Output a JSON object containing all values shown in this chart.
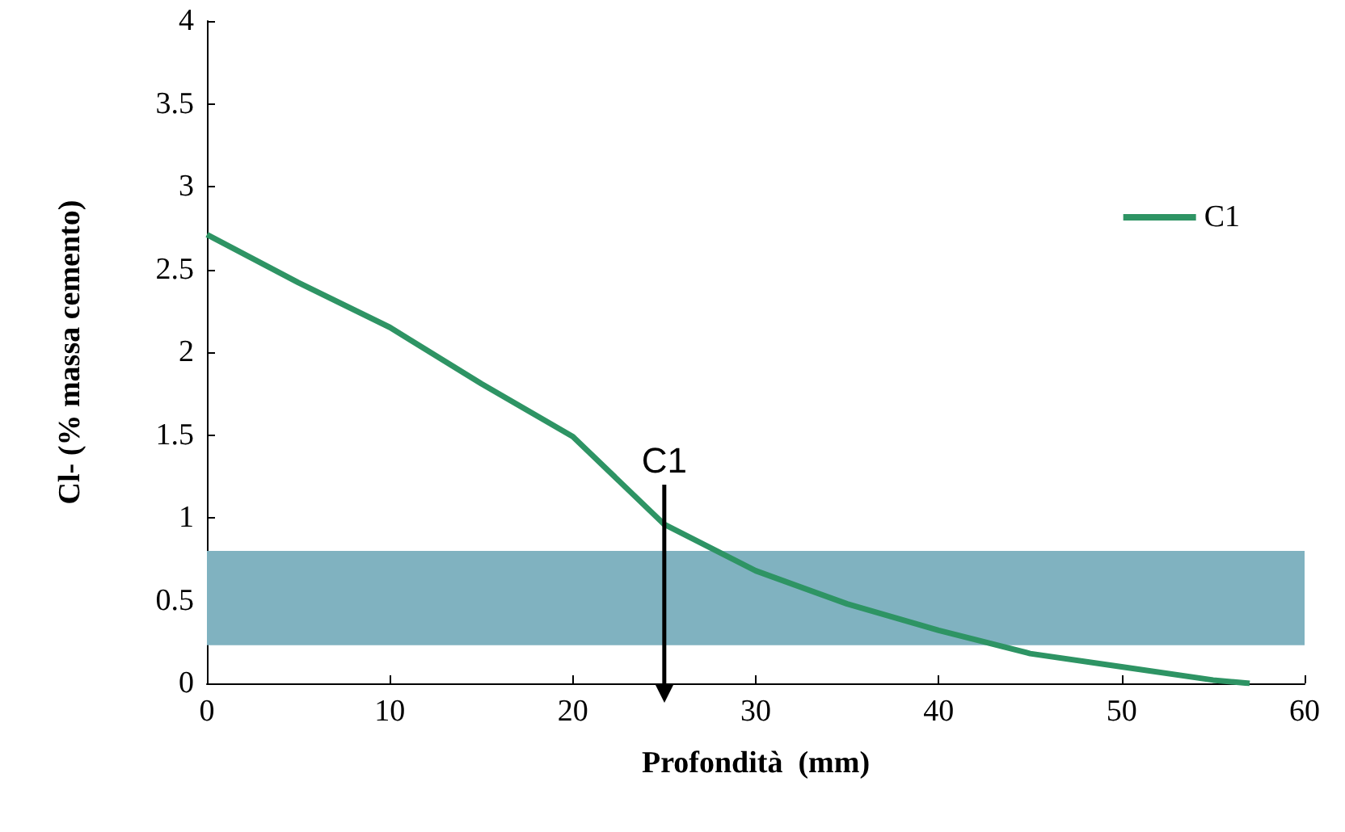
{
  "chart_data": {
    "type": "line",
    "xlabel": "Profondità  (mm)",
    "ylabel": "Cl- (% massa cemento)",
    "x": [
      0,
      5,
      10,
      15,
      20,
      25,
      30,
      35,
      40,
      45,
      50,
      55,
      57
    ],
    "series": [
      {
        "name": "C1",
        "color": "#2e9464",
        "values": [
          2.71,
          2.42,
          2.15,
          1.81,
          1.49,
          0.96,
          0.68,
          0.48,
          0.32,
          0.18,
          0.1,
          0.02,
          0
        ]
      }
    ],
    "xlim": [
      0,
      60
    ],
    "xticks": [
      0,
      10,
      20,
      30,
      40,
      50,
      60
    ],
    "ylim": [
      0,
      4
    ],
    "yticks": [
      0,
      0.5,
      1,
      1.5,
      2,
      2.5,
      3,
      3.5,
      4
    ],
    "bands": [
      {
        "axis": "y",
        "from": 0.23,
        "to": 0.8,
        "color": "#80b2c0"
      }
    ],
    "ref_lines": [
      {
        "axis": "x",
        "value": 25,
        "label": "C1",
        "color": "#000000"
      }
    ],
    "grid": false,
    "legend": "top right",
    "marker": "none",
    "line_style": "solid"
  }
}
